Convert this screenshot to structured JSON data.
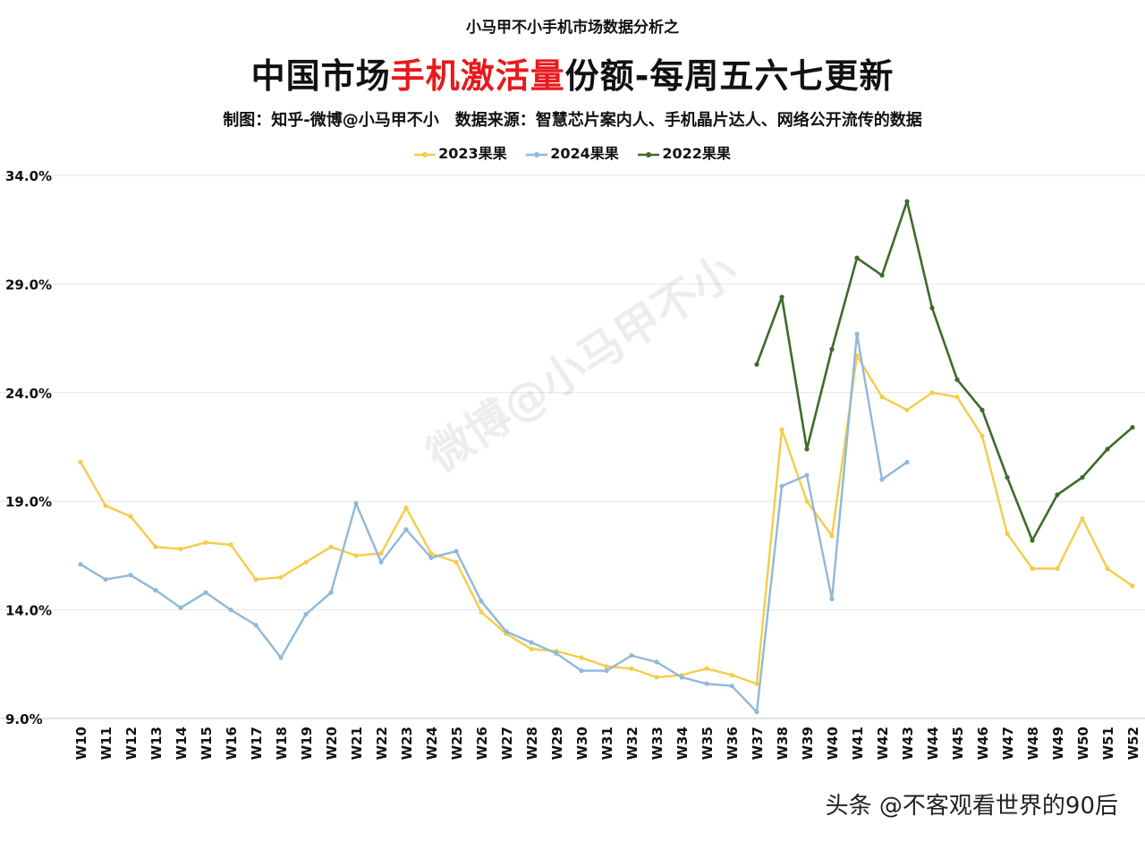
{
  "header": {
    "kicker": "小马甲不小手机市场数据分析之",
    "title_pre": "中国市场",
    "title_highlight": "手机激活量",
    "title_post": "份额-每周五六七更新",
    "credits_left": "制图：知乎-微博@小马甲不小",
    "credits_right": "数据来源：智慧芯片案内人、手机晶片达人、网络公开流传的数据"
  },
  "watermark": "微博@小马甲不小",
  "footer": "头条 @不客观看世界的90后",
  "colors": {
    "s2023": "#f5cc4a",
    "s2024": "#8fb8d9",
    "s2022": "#3e6b2a",
    "title_highlight": "#e8191d"
  },
  "chart_data": {
    "type": "line",
    "title": "中国市场手机激活量份额-每周五六七更新",
    "ylim": [
      9.0,
      34.0
    ],
    "yticks": [
      "34.0%",
      "29.0%",
      "24.0%",
      "19.0%",
      "14.0%",
      "9.0%"
    ],
    "ytick_values": [
      34,
      29,
      24,
      19,
      14,
      9
    ],
    "grid": true,
    "legend_position": "top-center",
    "categories": [
      "W10",
      "W11",
      "W12",
      "W13",
      "W14",
      "W15",
      "W16",
      "W17",
      "W18",
      "W19",
      "W20",
      "W21",
      "W22",
      "W23",
      "W24",
      "W25",
      "W26",
      "W27",
      "W28",
      "W29",
      "W30",
      "W31",
      "W32",
      "W33",
      "W34",
      "W35",
      "W36",
      "W37",
      "W38",
      "W39",
      "W40",
      "W41",
      "W42",
      "W43",
      "W44",
      "W45",
      "W46",
      "W47",
      "W48",
      "W49",
      "W50",
      "W51",
      "W52"
    ],
    "series": [
      {
        "name": "2023果果",
        "color": "#f5cc4a",
        "values": [
          20.8,
          18.8,
          18.3,
          16.9,
          16.8,
          17.1,
          17.0,
          15.4,
          15.5,
          16.2,
          16.9,
          16.5,
          16.6,
          18.7,
          16.6,
          16.2,
          13.9,
          12.9,
          12.2,
          12.1,
          11.8,
          11.4,
          11.3,
          10.9,
          11.0,
          11.3,
          11.0,
          10.6,
          22.3,
          19.0,
          17.4,
          25.7,
          23.8,
          23.2,
          24.0,
          23.8,
          22.0,
          17.5,
          15.9,
          15.9,
          18.2,
          15.9,
          15.1
        ]
      },
      {
        "name": "2024果果",
        "color": "#8fb8d9",
        "values": [
          16.1,
          15.4,
          15.6,
          14.9,
          14.1,
          14.8,
          14.0,
          13.3,
          11.8,
          13.8,
          14.8,
          18.9,
          16.2,
          17.7,
          16.4,
          16.7,
          14.4,
          13.0,
          12.5,
          12.0,
          11.2,
          11.2,
          11.9,
          11.6,
          10.9,
          10.6,
          10.5,
          9.3,
          19.7,
          20.2,
          14.5,
          26.7,
          20.0,
          20.8,
          null,
          null,
          null,
          null,
          null,
          null,
          null,
          null,
          null
        ]
      },
      {
        "name": "2022果果",
        "color": "#3e6b2a",
        "values": [
          null,
          null,
          null,
          null,
          null,
          null,
          null,
          null,
          null,
          null,
          null,
          null,
          null,
          null,
          null,
          null,
          null,
          null,
          null,
          null,
          null,
          null,
          null,
          null,
          null,
          null,
          null,
          25.3,
          28.4,
          21.4,
          26.0,
          30.2,
          29.4,
          32.8,
          27.9,
          24.6,
          23.2,
          20.1,
          17.2,
          19.3,
          20.1,
          21.4,
          22.4
        ]
      }
    ]
  }
}
